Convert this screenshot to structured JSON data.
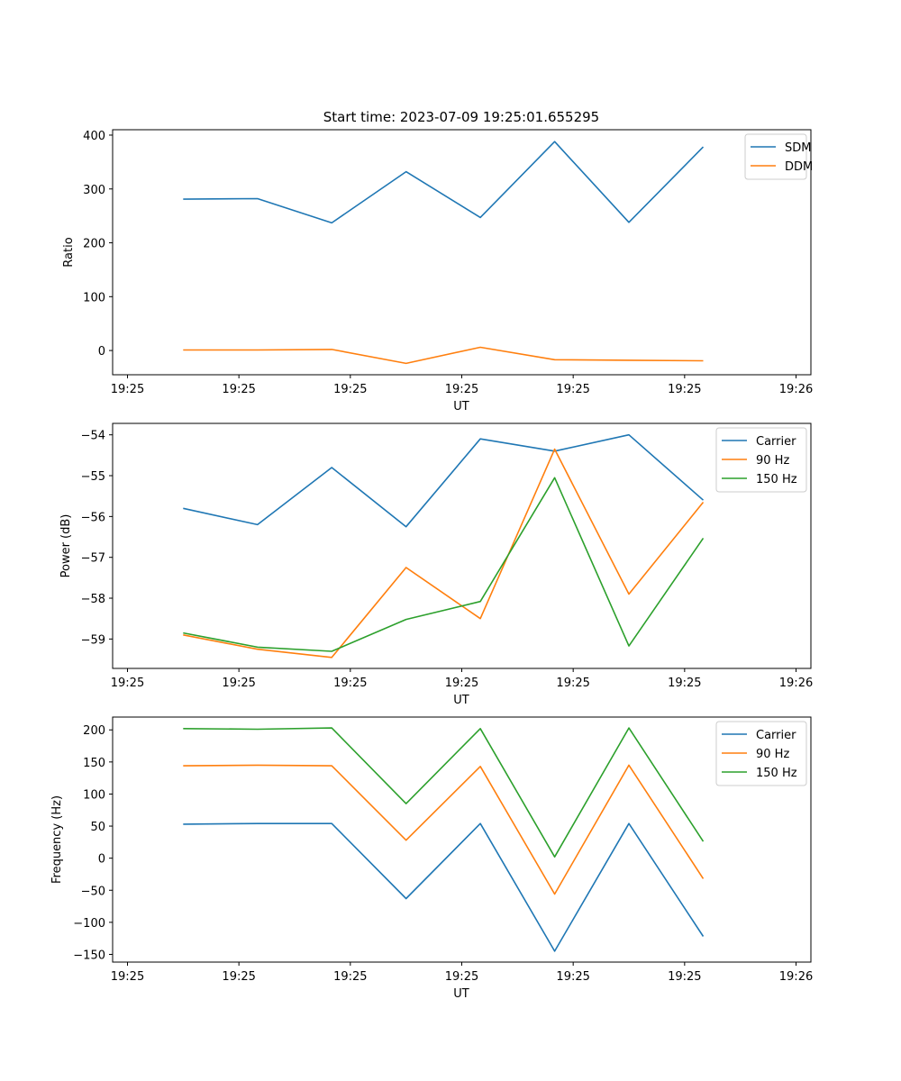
{
  "title": "Start time: 2023-07-09 19:25:01.655295",
  "chart_data": [
    {
      "type": "line",
      "xlabel": "UT",
      "ylabel": "Ratio",
      "x_tick_labels": [
        "19:25",
        "19:25",
        "19:25",
        "19:25",
        "19:25",
        "19:25",
        "19:26"
      ],
      "y_ticks": [
        0,
        100,
        200,
        300,
        400
      ],
      "ylim": [
        -45,
        410
      ],
      "x_index_range": [
        -0.2,
        9.2
      ],
      "x": [
        0.75,
        1.75,
        2.75,
        3.75,
        4.75,
        5.75,
        6.75,
        7.75
      ],
      "legend_position": "upper-right",
      "series": [
        {
          "name": "SDM",
          "color": "#1f77b4",
          "values": [
            281,
            282,
            237,
            332,
            247,
            388,
            238,
            378
          ]
        },
        {
          "name": "DDM",
          "color": "#ff7f0e",
          "values": [
            1,
            1,
            2,
            -24,
            6,
            -17,
            -18,
            -19
          ]
        }
      ]
    },
    {
      "type": "line",
      "xlabel": "UT",
      "ylabel": "Power (dB)",
      "x_tick_labels": [
        "19:25",
        "19:25",
        "19:25",
        "19:25",
        "19:25",
        "19:25",
        "19:26"
      ],
      "y_ticks": [
        -59,
        -58,
        -57,
        -56,
        -55,
        -54
      ],
      "ylim": [
        -59.72,
        -53.72
      ],
      "x_index_range": [
        -0.2,
        9.2
      ],
      "x": [
        0.75,
        1.75,
        2.75,
        3.75,
        4.75,
        5.75,
        6.75,
        7.75
      ],
      "legend_position": "upper-right",
      "series": [
        {
          "name": "Carrier",
          "color": "#1f77b4",
          "values": [
            -55.8,
            -56.2,
            -54.8,
            -56.25,
            -54.1,
            -54.4,
            -54.0,
            -55.6
          ]
        },
        {
          "name": "90 Hz",
          "color": "#ff7f0e",
          "values": [
            -58.9,
            -59.25,
            -59.45,
            -57.25,
            -58.5,
            -54.35,
            -57.9,
            -55.65
          ]
        },
        {
          "name": "150 Hz",
          "color": "#2ca02c",
          "values": [
            -58.85,
            -59.2,
            -59.3,
            -58.52,
            -58.08,
            -55.05,
            -59.17,
            -56.53
          ]
        }
      ]
    },
    {
      "type": "line",
      "xlabel": "UT",
      "ylabel": "Frequency (Hz)",
      "x_tick_labels": [
        "19:25",
        "19:25",
        "19:25",
        "19:25",
        "19:25",
        "19:25",
        "19:26"
      ],
      "y_ticks": [
        -150,
        -100,
        -50,
        0,
        50,
        100,
        150,
        200
      ],
      "ylim": [
        -162,
        220
      ],
      "x_index_range": [
        -0.2,
        9.2
      ],
      "x": [
        0.75,
        1.75,
        2.75,
        3.75,
        4.75,
        5.75,
        6.75,
        7.75
      ],
      "legend_position": "upper-right",
      "series": [
        {
          "name": "Carrier",
          "color": "#1f77b4",
          "values": [
            53,
            54,
            54,
            -63,
            54,
            -145,
            54,
            -122
          ]
        },
        {
          "name": "90 Hz",
          "color": "#ff7f0e",
          "values": [
            144,
            145,
            144,
            28,
            143,
            -56,
            145,
            -32
          ]
        },
        {
          "name": "150 Hz",
          "color": "#2ca02c",
          "values": [
            202,
            201,
            203,
            85,
            202,
            2,
            203,
            26
          ]
        }
      ]
    }
  ]
}
